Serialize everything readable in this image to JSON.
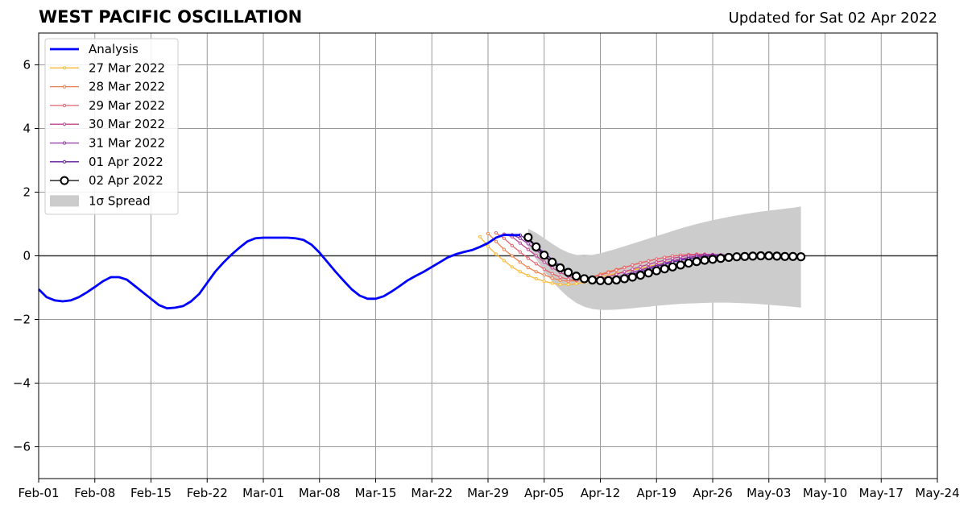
{
  "header": {
    "title": "WEST PACIFIC OSCILLATION",
    "updated": "Updated for Sat 02 Apr 2022"
  },
  "chart_data": {
    "type": "line",
    "title": "WEST PACIFIC OSCILLATION",
    "xlabel": "",
    "ylabel": "",
    "xlim": [
      "2022-02-01",
      "2022-05-24"
    ],
    "ylim": [
      -7,
      7
    ],
    "x_ticks": [
      "Feb-01",
      "Feb-08",
      "Feb-15",
      "Feb-22",
      "Mar-01",
      "Mar-08",
      "Mar-15",
      "Mar-22",
      "Mar-29",
      "Apr-05",
      "Apr-12",
      "Apr-19",
      "Apr-26",
      "May-03",
      "May-10",
      "May-17",
      "May-24"
    ],
    "y_ticks": [
      "−6",
      "−4",
      "−2",
      "0",
      "2",
      "4",
      "6"
    ],
    "grid": true,
    "zero_line": true,
    "legend_position": "top-left",
    "analysis": {
      "name": "Analysis",
      "color": "#0000ff",
      "x": [
        "2022-02-01",
        "2022-02-02",
        "2022-02-03",
        "2022-02-04",
        "2022-02-05",
        "2022-02-06",
        "2022-02-07",
        "2022-02-08",
        "2022-02-09",
        "2022-02-10",
        "2022-02-11",
        "2022-02-12",
        "2022-02-13",
        "2022-02-14",
        "2022-02-15",
        "2022-02-16",
        "2022-02-17",
        "2022-02-18",
        "2022-02-19",
        "2022-02-20",
        "2022-02-21",
        "2022-02-22",
        "2022-02-23",
        "2022-02-24",
        "2022-02-25",
        "2022-02-26",
        "2022-02-27",
        "2022-02-28",
        "2022-03-01",
        "2022-03-02",
        "2022-03-03",
        "2022-03-04",
        "2022-03-05",
        "2022-03-06",
        "2022-03-07",
        "2022-03-08",
        "2022-03-09",
        "2022-03-10",
        "2022-03-11",
        "2022-03-12",
        "2022-03-13",
        "2022-03-14",
        "2022-03-15",
        "2022-03-16",
        "2022-03-17",
        "2022-03-18",
        "2022-03-19",
        "2022-03-20",
        "2022-03-21",
        "2022-03-22",
        "2022-03-23",
        "2022-03-24",
        "2022-03-25",
        "2022-03-26",
        "2022-03-27",
        "2022-03-28",
        "2022-03-29",
        "2022-03-30",
        "2022-03-31",
        "2022-04-01",
        "2022-04-02"
      ],
      "values": [
        -1.05,
        -1.3,
        -1.4,
        -1.43,
        -1.4,
        -1.3,
        -1.15,
        -0.98,
        -0.8,
        -0.67,
        -0.67,
        -0.75,
        -0.95,
        -1.15,
        -1.35,
        -1.55,
        -1.65,
        -1.63,
        -1.58,
        -1.43,
        -1.2,
        -0.85,
        -0.5,
        -0.22,
        0.03,
        0.25,
        0.45,
        0.55,
        0.57,
        0.57,
        0.57,
        0.57,
        0.55,
        0.5,
        0.35,
        0.1,
        -0.2,
        -0.5,
        -0.78,
        -1.05,
        -1.25,
        -1.35,
        -1.35,
        -1.27,
        -1.12,
        -0.95,
        -0.77,
        -0.63,
        -0.5,
        -0.35,
        -0.2,
        -0.05,
        0.05,
        0.12,
        0.18,
        0.28,
        0.4,
        0.57,
        0.66,
        0.65,
        0.65
      ]
    },
    "forecasts": [
      {
        "name": "27 Mar 2022",
        "color": "#fbb937",
        "start": "2022-03-28",
        "values": [
          0.6,
          0.3,
          0.05,
          -0.15,
          -0.35,
          -0.5,
          -0.62,
          -0.72,
          -0.8,
          -0.86,
          -0.9,
          -0.9,
          -0.88,
          -0.83,
          -0.75,
          -0.67,
          -0.6,
          -0.55,
          -0.5,
          -0.45,
          -0.4,
          -0.34,
          -0.28,
          -0.22,
          -0.16,
          -0.1,
          -0.05,
          -0.02,
          0.0,
          0.01,
          0.02,
          0.02,
          0.01
        ]
      },
      {
        "name": "28 Mar 2022",
        "color": "#ef7f4f",
        "start": "2022-03-29",
        "values": [
          0.7,
          0.45,
          0.2,
          0.0,
          -0.2,
          -0.37,
          -0.5,
          -0.6,
          -0.7,
          -0.77,
          -0.8,
          -0.78,
          -0.73,
          -0.66,
          -0.58,
          -0.5,
          -0.43,
          -0.36,
          -0.29,
          -0.22,
          -0.16,
          -0.1,
          -0.05,
          -0.01,
          0.02,
          0.04,
          0.05,
          0.04,
          0.03,
          0.02,
          0.01,
          0.0,
          0.0
        ]
      },
      {
        "name": "29 Mar 2022",
        "color": "#e3646e",
        "start": "2022-03-30",
        "values": [
          0.72,
          0.55,
          0.32,
          0.12,
          -0.08,
          -0.25,
          -0.42,
          -0.56,
          -0.67,
          -0.74,
          -0.77,
          -0.74,
          -0.68,
          -0.61,
          -0.53,
          -0.45,
          -0.37,
          -0.29,
          -0.22,
          -0.16,
          -0.1,
          -0.05,
          -0.01,
          0.02,
          0.04,
          0.05,
          0.05,
          0.04,
          0.03,
          0.02,
          0.01,
          0.0,
          0.0
        ]
      },
      {
        "name": "30 Mar 2022",
        "color": "#c1448d",
        "start": "2022-03-31",
        "values": [
          0.68,
          0.6,
          0.4,
          0.2,
          0.0,
          -0.2,
          -0.38,
          -0.52,
          -0.64,
          -0.72,
          -0.76,
          -0.76,
          -0.72,
          -0.66,
          -0.58,
          -0.5,
          -0.42,
          -0.34,
          -0.27,
          -0.2,
          -0.14,
          -0.08,
          -0.03,
          0.01,
          0.03,
          0.04,
          0.04,
          0.03,
          0.02,
          0.01,
          0.0,
          0.0,
          0.0
        ]
      },
      {
        "name": "31 Mar 2022",
        "color": "#8f2fa4",
        "start": "2022-04-01",
        "values": [
          0.66,
          0.55,
          0.38,
          0.18,
          -0.02,
          -0.22,
          -0.4,
          -0.55,
          -0.66,
          -0.73,
          -0.76,
          -0.76,
          -0.73,
          -0.67,
          -0.6,
          -0.52,
          -0.45,
          -0.37,
          -0.3,
          -0.23,
          -0.16,
          -0.1,
          -0.05,
          -0.01,
          0.02,
          0.03,
          0.03,
          0.02,
          0.01,
          0.0,
          0.0,
          0.0,
          0.0
        ]
      },
      {
        "name": "01 Apr 2022",
        "color": "#5c1a9c",
        "start": "2022-04-02",
        "values": [
          0.65,
          0.5,
          0.3,
          0.1,
          -0.12,
          -0.32,
          -0.5,
          -0.63,
          -0.72,
          -0.77,
          -0.79,
          -0.77,
          -0.72,
          -0.65,
          -0.58,
          -0.5,
          -0.42,
          -0.34,
          -0.27,
          -0.2,
          -0.14,
          -0.09,
          -0.05,
          -0.02,
          0.0,
          0.01,
          0.01,
          0.0,
          0.0,
          0.0,
          0.0,
          0.0,
          0.0
        ]
      },
      {
        "name": "02 Apr 2022",
        "color": "#000000",
        "start": "2022-04-03",
        "marker": "open-circle",
        "values": [
          0.58,
          0.28,
          0.02,
          -0.2,
          -0.38,
          -0.52,
          -0.64,
          -0.72,
          -0.76,
          -0.78,
          -0.78,
          -0.76,
          -0.72,
          -0.67,
          -0.61,
          -0.54,
          -0.47,
          -0.41,
          -0.35,
          -0.29,
          -0.23,
          -0.18,
          -0.14,
          -0.11,
          -0.08,
          -0.05,
          -0.03,
          -0.02,
          -0.01,
          0.0,
          0.0,
          -0.01,
          -0.02,
          -0.02,
          -0.03
        ]
      }
    ],
    "spread": {
      "name": "1σ Spread",
      "color": "#cccccc",
      "start": "2022-04-03",
      "upper": [
        0.85,
        0.72,
        0.55,
        0.38,
        0.22,
        0.1,
        0.03,
        0.01,
        0.03,
        0.08,
        0.15,
        0.22,
        0.3,
        0.38,
        0.46,
        0.54,
        0.62,
        0.7,
        0.78,
        0.86,
        0.93,
        1.0,
        1.06,
        1.12,
        1.17,
        1.22,
        1.27,
        1.31,
        1.35,
        1.39,
        1.42,
        1.45,
        1.48,
        1.51,
        1.55
      ],
      "lower": [
        0.3,
        -0.1,
        -0.48,
        -0.8,
        -1.07,
        -1.3,
        -1.48,
        -1.6,
        -1.67,
        -1.7,
        -1.7,
        -1.69,
        -1.67,
        -1.65,
        -1.62,
        -1.6,
        -1.57,
        -1.55,
        -1.53,
        -1.51,
        -1.5,
        -1.49,
        -1.48,
        -1.47,
        -1.47,
        -1.47,
        -1.48,
        -1.49,
        -1.5,
        -1.52,
        -1.54,
        -1.56,
        -1.58,
        -1.6,
        -1.63
      ]
    }
  }
}
